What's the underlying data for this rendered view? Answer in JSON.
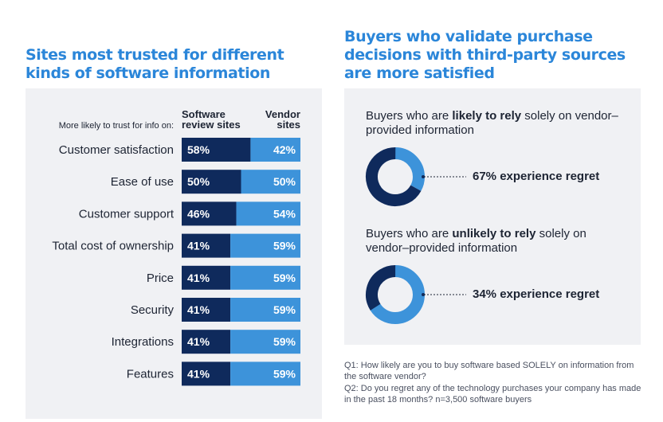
{
  "left": {
    "title": "Sites most trusted for different kinds of software information"
  },
  "right": {
    "title": "Buyers who validate purchase decisions with third-party sources are more satisfied",
    "donut1": {
      "desc_pre": "Buyers who are ",
      "desc_bold": "likely to rely",
      "desc_post": " solely on vendor–provided information",
      "regret_label": "67% experience regret"
    },
    "donut2": {
      "desc_pre": "Buyers who are ",
      "desc_bold": "unlikely to rely",
      "desc_post": " solely on vendor–provided information",
      "regret_label": "34% experience regret"
    },
    "footnotes": [
      "Q1: How likely are you to buy software based SOLELY on information from the software vendor?",
      "Q2: Do you regret any of the technology purchases your company has made in the past 18 months? n=3,500 software buyers"
    ]
  },
  "colors": {
    "dark": "#0f2a5c",
    "light": "#3d93da",
    "heading": "#2b86d9"
  },
  "chart_data": [
    {
      "type": "bar",
      "stacked": true,
      "orientation": "horizontal",
      "title": "Sites most trusted for different kinds of software information",
      "axis_note": "More likely to trust for info on:",
      "categories": [
        "Customer satisfaction",
        "Ease of use",
        "Customer support",
        "Total cost of ownership",
        "Price",
        "Security",
        "Integrations",
        "Features"
      ],
      "series": [
        {
          "name": "Software review sites",
          "name_lines": [
            "Software",
            "review sites"
          ],
          "values": [
            58,
            50,
            46,
            41,
            41,
            41,
            41,
            41
          ],
          "labels": [
            "58%",
            "50%",
            "46%",
            "41%",
            "41%",
            "41%",
            "41%",
            "41%"
          ]
        },
        {
          "name": "Vendor sites",
          "name_lines": [
            "Vendor",
            "sites"
          ],
          "values": [
            42,
            50,
            54,
            59,
            59,
            59,
            59,
            59
          ],
          "labels": [
            "42%",
            "50%",
            "54%",
            "59%",
            "59%",
            "59%",
            "59%",
            "59%"
          ]
        }
      ],
      "xlim": [
        0,
        100
      ]
    },
    {
      "type": "pie",
      "donut": true,
      "title": "Buyers who are likely to rely solely on vendor-provided information",
      "categories": [
        "Experience regret",
        "No regret"
      ],
      "values": [
        67,
        33
      ],
      "label": "67% experience regret"
    },
    {
      "type": "pie",
      "donut": true,
      "title": "Buyers who are unlikely to rely solely on vendor-provided information",
      "categories": [
        "Experience regret",
        "No regret"
      ],
      "values": [
        34,
        66
      ],
      "label": "34% experience regret"
    }
  ]
}
